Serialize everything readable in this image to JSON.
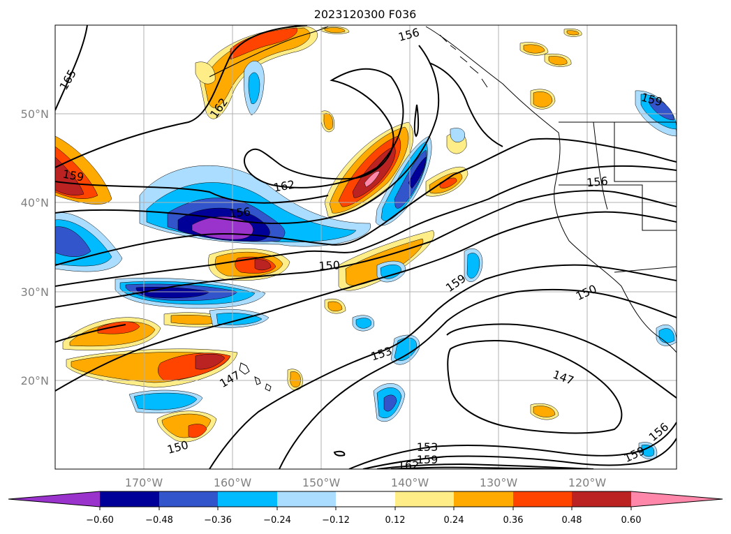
{
  "title": "2023120300 F036",
  "map": {
    "latitude_labels": [
      "50°N",
      "40°N",
      "30°N",
      "20°N"
    ],
    "longitude_labels": [
      "170°W",
      "160°W",
      "150°W",
      "140°W",
      "130°W",
      "120°W"
    ],
    "grid": true,
    "coastlines": true,
    "contour_color": "#000000",
    "contour_labels": [
      {
        "text": "165"
      },
      {
        "text": "156"
      },
      {
        "text": "162"
      },
      {
        "text": "159"
      },
      {
        "text": "162"
      },
      {
        "text": "156"
      },
      {
        "text": "156"
      },
      {
        "text": "150"
      },
      {
        "text": "159"
      },
      {
        "text": "150"
      },
      {
        "text": "153"
      },
      {
        "text": "147"
      },
      {
        "text": "147"
      },
      {
        "text": "150"
      },
      {
        "text": "153"
      },
      {
        "text": "159"
      },
      {
        "text": "162"
      },
      {
        "text": "159"
      },
      {
        "text": "156"
      },
      {
        "text": "159"
      }
    ]
  },
  "colorbar": {
    "extend": "both",
    "tick_labels": [
      "−0.60",
      "−0.48",
      "−0.36",
      "−0.24",
      "−0.12",
      "0.12",
      "0.24",
      "0.36",
      "0.48",
      "0.60"
    ],
    "levels": [
      -0.6,
      -0.48,
      -0.36,
      -0.24,
      -0.12,
      0.12,
      0.24,
      0.36,
      0.48,
      0.6
    ],
    "colors": [
      "#9933cc",
      "#000099",
      "#3355cc",
      "#00bbff",
      "#aaddff",
      "#ffffff",
      "#ffee88",
      "#ffaa00",
      "#ff4400",
      "#bb2222",
      "#ff88aa"
    ]
  }
}
